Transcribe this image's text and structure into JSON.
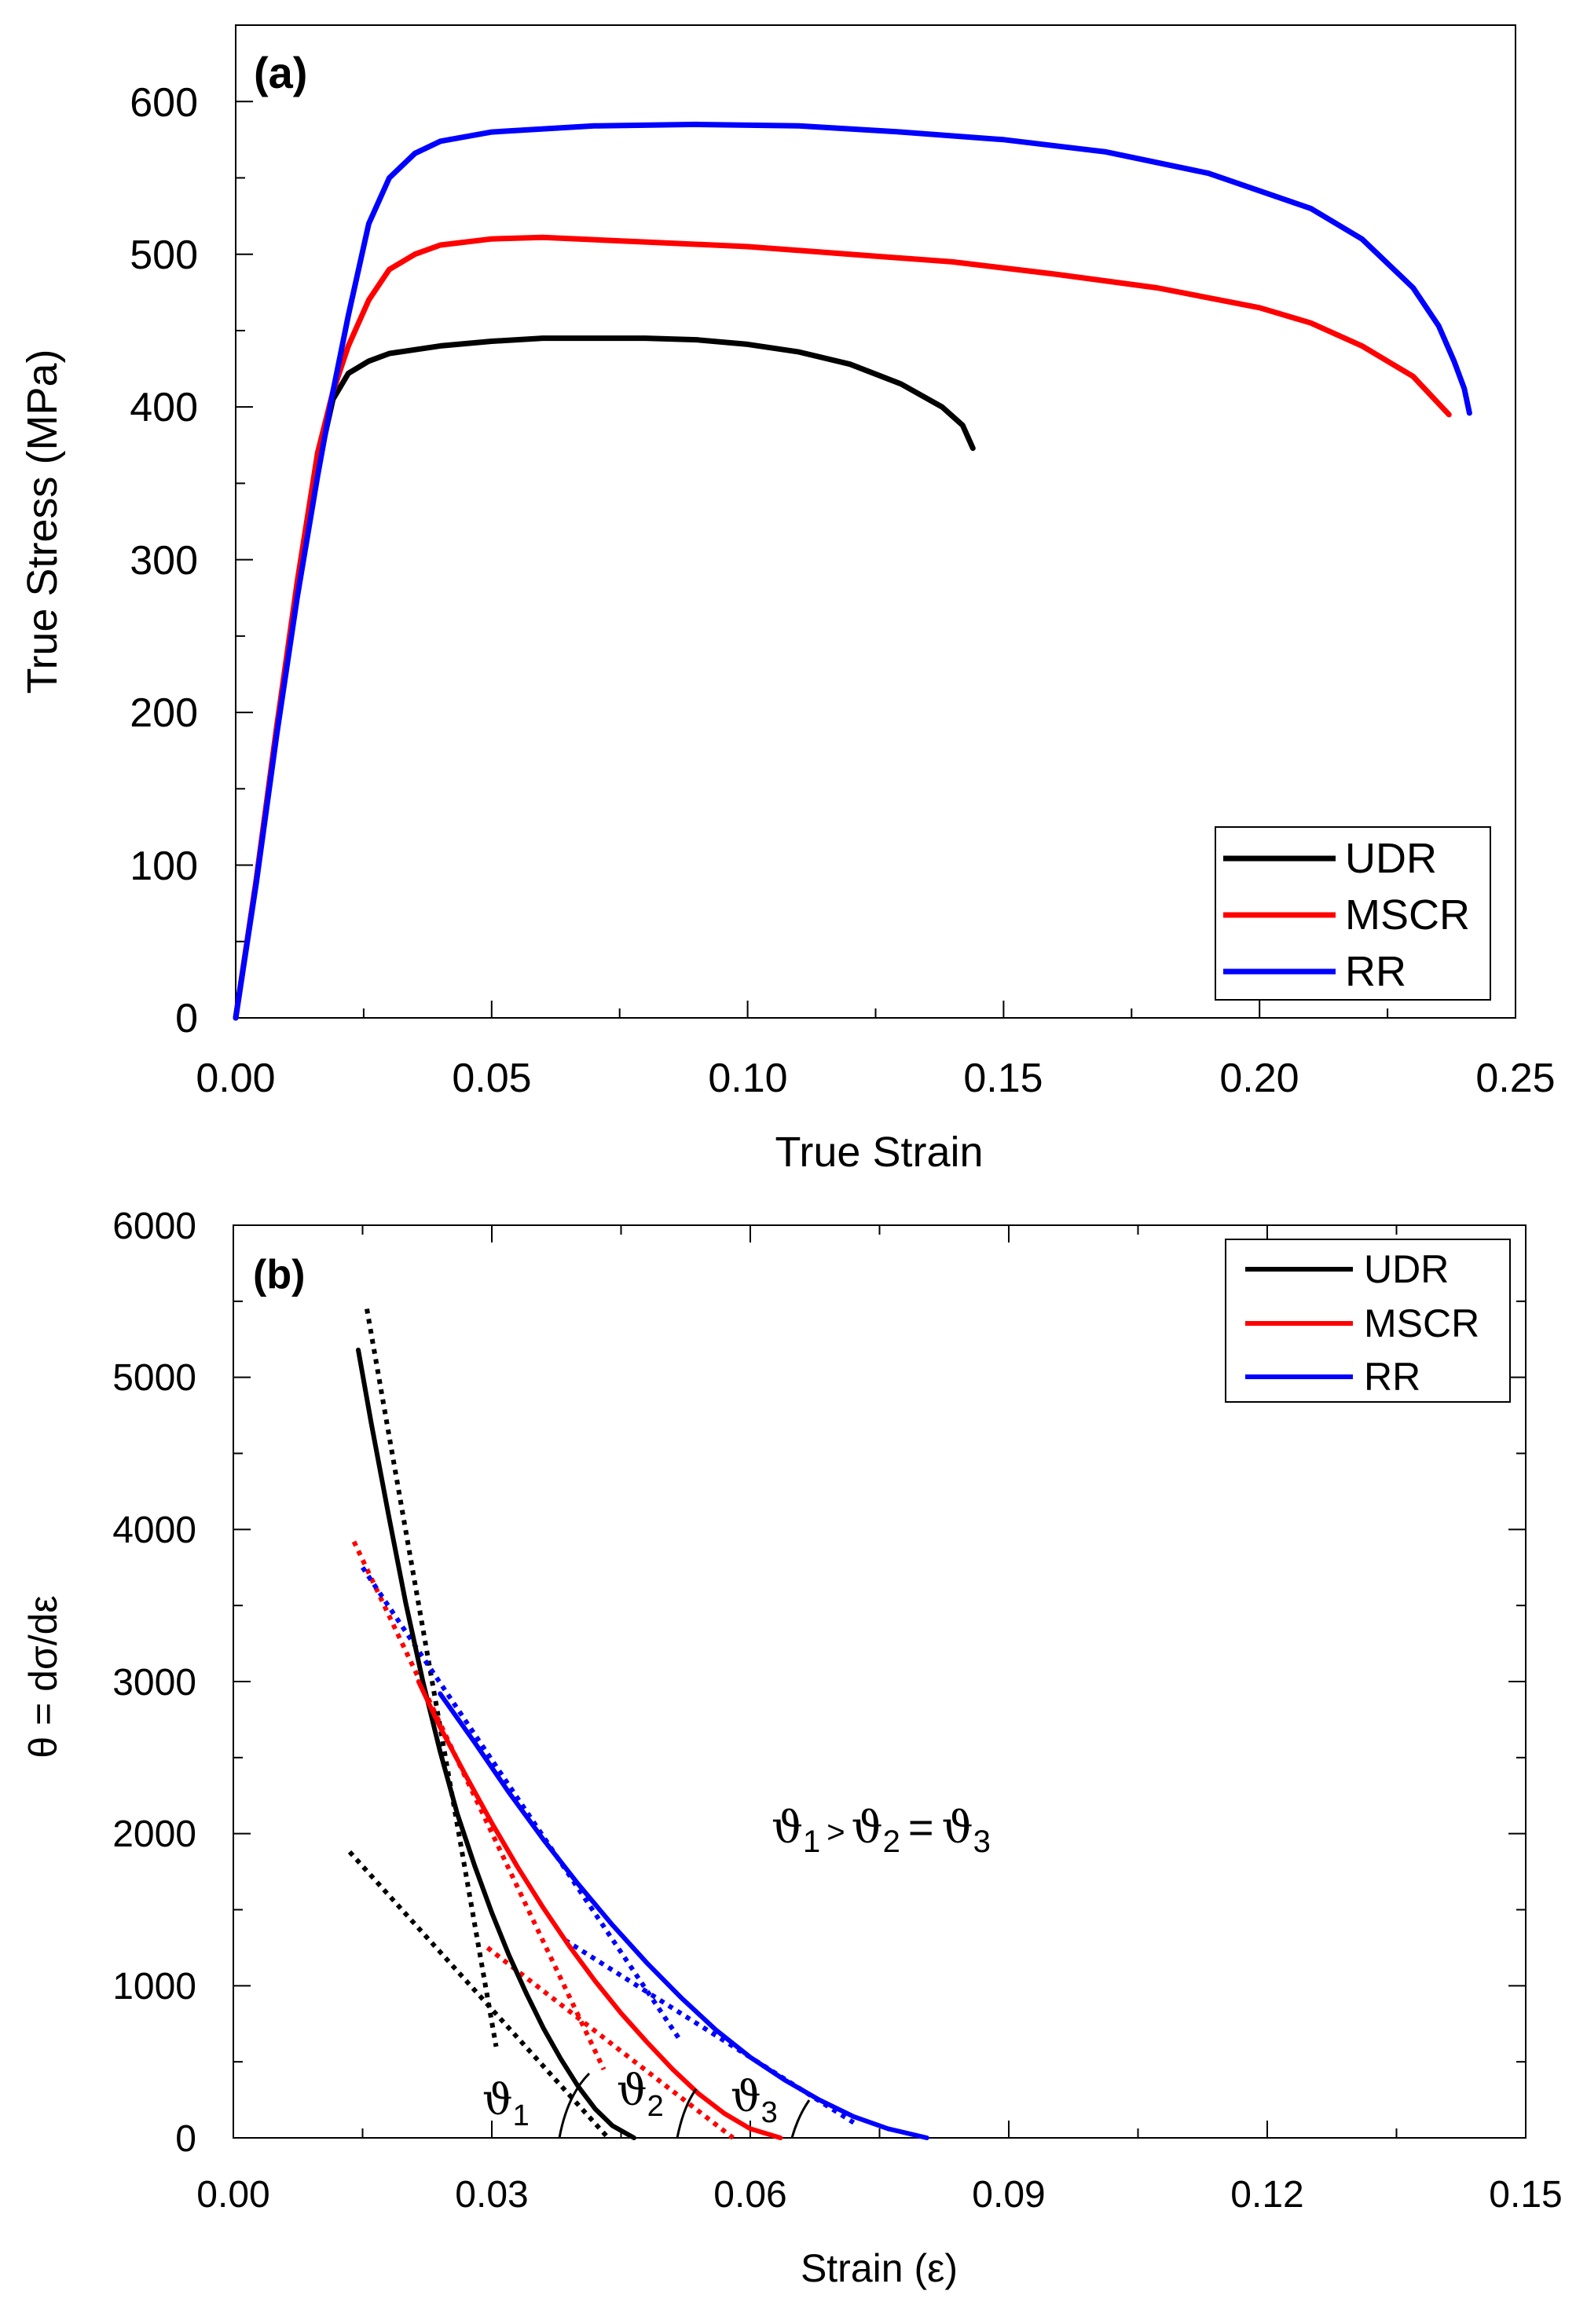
{
  "chart_data": [
    {
      "panel_label": "(a)",
      "type": "line",
      "xlabel": "True Strain",
      "ylabel": "True Stress (MPa)",
      "xlim": [
        0,
        0.25
      ],
      "ylim": [
        0,
        650
      ],
      "xticks": [
        "0.00",
        "0.05",
        "0.10",
        "0.15",
        "0.20",
        "0.25"
      ],
      "yticks": [
        "0",
        "100",
        "200",
        "300",
        "400",
        "500",
        "600"
      ],
      "legend_position": "bottom-right",
      "series": [
        {
          "name": "UDR",
          "color": "#000000",
          "points": [
            [
              0,
              0
            ],
            [
              0.004,
              90
            ],
            [
              0.008,
              190
            ],
            [
              0.012,
              280
            ],
            [
              0.016,
              360
            ],
            [
              0.019,
              405
            ],
            [
              0.022,
              422
            ],
            [
              0.026,
              430
            ],
            [
              0.03,
              435
            ],
            [
              0.04,
              440
            ],
            [
              0.05,
              443
            ],
            [
              0.06,
              445
            ],
            [
              0.07,
              445
            ],
            [
              0.08,
              445
            ],
            [
              0.09,
              444
            ],
            [
              0.1,
              441
            ],
            [
              0.11,
              436
            ],
            [
              0.12,
              428
            ],
            [
              0.13,
              415
            ],
            [
              0.138,
              400
            ],
            [
              0.142,
              388
            ],
            [
              0.144,
              373
            ]
          ]
        },
        {
          "name": "MSCR",
          "color": "#ff0000",
          "points": [
            [
              0,
              0
            ],
            [
              0.004,
              90
            ],
            [
              0.008,
              190
            ],
            [
              0.012,
              285
            ],
            [
              0.016,
              370
            ],
            [
              0.019,
              410
            ],
            [
              0.022,
              440
            ],
            [
              0.026,
              470
            ],
            [
              0.03,
              490
            ],
            [
              0.035,
              500
            ],
            [
              0.04,
              506
            ],
            [
              0.05,
              510
            ],
            [
              0.06,
              511
            ],
            [
              0.08,
              508
            ],
            [
              0.1,
              505
            ],
            [
              0.12,
              500
            ],
            [
              0.14,
              495
            ],
            [
              0.16,
              487
            ],
            [
              0.18,
              478
            ],
            [
              0.2,
              465
            ],
            [
              0.21,
              455
            ],
            [
              0.22,
              440
            ],
            [
              0.23,
              420
            ],
            [
              0.237,
              395
            ]
          ]
        },
        {
          "name": "RR",
          "color": "#0000ff",
          "points": [
            [
              0,
              0
            ],
            [
              0.004,
              88
            ],
            [
              0.008,
              185
            ],
            [
              0.012,
              275
            ],
            [
              0.016,
              355
            ],
            [
              0.019,
              410
            ],
            [
              0.022,
              460
            ],
            [
              0.026,
              520
            ],
            [
              0.03,
              550
            ],
            [
              0.035,
              566
            ],
            [
              0.04,
              574
            ],
            [
              0.05,
              580
            ],
            [
              0.07,
              584
            ],
            [
              0.09,
              585
            ],
            [
              0.11,
              584
            ],
            [
              0.13,
              580
            ],
            [
              0.15,
              575
            ],
            [
              0.17,
              567
            ],
            [
              0.19,
              553
            ],
            [
              0.21,
              530
            ],
            [
              0.22,
              510
            ],
            [
              0.23,
              478
            ],
            [
              0.235,
              453
            ],
            [
              0.238,
              430
            ],
            [
              0.24,
              412
            ],
            [
              0.241,
              396
            ]
          ]
        }
      ]
    },
    {
      "panel_label": "(b)",
      "type": "line",
      "xlabel": "Strain (ε)",
      "ylabel": "θ = dσ/dε",
      "xlim": [
        0,
        0.15
      ],
      "ylim": [
        0,
        6000
      ],
      "xticks": [
        "0.00",
        "0.03",
        "0.06",
        "0.09",
        "0.12",
        "0.15"
      ],
      "yticks": [
        "0",
        "1000",
        "2000",
        "3000",
        "4000",
        "5000",
        "6000"
      ],
      "legend_position": "top-right",
      "series": [
        {
          "name": "UDR",
          "color": "#000000",
          "points": [
            [
              0.0145,
              5180
            ],
            [
              0.016,
              4700
            ],
            [
              0.018,
              4100
            ],
            [
              0.02,
              3520
            ],
            [
              0.022,
              3000
            ],
            [
              0.024,
              2540
            ],
            [
              0.026,
              2130
            ],
            [
              0.028,
              1790
            ],
            [
              0.03,
              1480
            ],
            [
              0.032,
              1200
            ],
            [
              0.034,
              950
            ],
            [
              0.036,
              720
            ],
            [
              0.038,
              520
            ],
            [
              0.04,
              340
            ],
            [
              0.042,
              190
            ],
            [
              0.044,
              80
            ],
            [
              0.0465,
              0
            ]
          ]
        },
        {
          "name": "MSCR",
          "color": "#ff0000",
          "points": [
            [
              0.0215,
              3000
            ],
            [
              0.024,
              2700
            ],
            [
              0.027,
              2380
            ],
            [
              0.03,
              2070
            ],
            [
              0.033,
              1780
            ],
            [
              0.036,
              1510
            ],
            [
              0.039,
              1260
            ],
            [
              0.042,
              1030
            ],
            [
              0.045,
              820
            ],
            [
              0.048,
              630
            ],
            [
              0.051,
              450
            ],
            [
              0.054,
              290
            ],
            [
              0.057,
              160
            ],
            [
              0.06,
              60
            ],
            [
              0.0635,
              0
            ]
          ]
        },
        {
          "name": "RR",
          "color": "#0000ff",
          "points": [
            [
              0.024,
              2920
            ],
            [
              0.028,
              2600
            ],
            [
              0.032,
              2270
            ],
            [
              0.036,
              1960
            ],
            [
              0.04,
              1670
            ],
            [
              0.044,
              1400
            ],
            [
              0.048,
              1150
            ],
            [
              0.052,
              920
            ],
            [
              0.056,
              710
            ],
            [
              0.06,
              530
            ],
            [
              0.064,
              380
            ],
            [
              0.068,
              250
            ],
            [
              0.072,
              140
            ],
            [
              0.076,
              60
            ],
            [
              0.0805,
              0
            ]
          ]
        }
      ],
      "fit_lines": [
        {
          "color": "#000000",
          "from": [
            0.0155,
            5450
          ],
          "to": [
            0.0305,
            600
          ]
        },
        {
          "color": "#000000",
          "from": [
            0.0135,
            1880
          ],
          "to": [
            0.0435,
            0
          ]
        },
        {
          "color": "#ff0000",
          "from": [
            0.014,
            3920
          ],
          "to": [
            0.043,
            450
          ]
        },
        {
          "color": "#ff0000",
          "from": [
            0.0295,
            1250
          ],
          "to": [
            0.058,
            0
          ]
        },
        {
          "color": "#0000ff",
          "from": [
            0.015,
            3750
          ],
          "to": [
            0.052,
            630
          ]
        },
        {
          "color": "#0000ff",
          "from": [
            0.0385,
            1300
          ],
          "to": [
            0.072,
            100
          ]
        }
      ],
      "angle_labels": [
        {
          "sym": "ϑ",
          "sub": "1",
          "x": 0.0285,
          "y": 230
        },
        {
          "sym": "ϑ",
          "sub": "2",
          "x": 0.0445,
          "y": 230
        },
        {
          "sym": "ϑ",
          "sub": "3",
          "x": 0.058,
          "y": 230
        }
      ],
      "annotation": {
        "theta1": "ϑ",
        "sub1": "1",
        "op1": ">",
        "theta2": "ϑ",
        "sub2": "2",
        "op2": "=",
        "theta3": "ϑ",
        "sub3": "3"
      }
    }
  ],
  "legend_a": [
    "UDR",
    "MSCR",
    "RR"
  ],
  "legend_b": [
    "UDR",
    "MSCR",
    "RR"
  ]
}
